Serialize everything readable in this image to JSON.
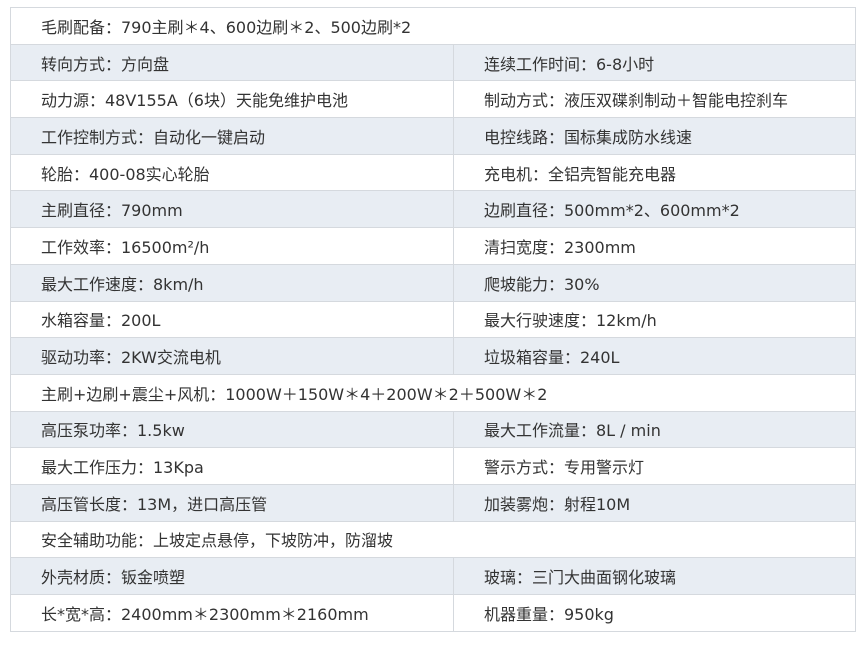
{
  "rows": [
    [
      "毛刷配备：790主刷＊4、600边刷＊2、500边刷*2"
    ],
    [
      "转向方式：方向盘",
      "连续工作时间：6-8小时"
    ],
    [
      "动力源：48V155A（6块）天能免维护电池",
      "制动方式：液压双碟刹制动＋智能电控刹车"
    ],
    [
      "工作控制方式：自动化一键启动",
      "电控线路：国标集成防水线速"
    ],
    [
      "轮胎：400-08实心轮胎",
      "充电机：全铝壳智能充电器"
    ],
    [
      "主刷直径：790mm",
      "边刷直径：500mm*2、600mm*2"
    ],
    [
      "工作效率：16500m²/h",
      "清扫宽度：2300mm"
    ],
    [
      "最大工作速度：8km/h",
      "爬坡能力：30%"
    ],
    [
      "水箱容量：200L",
      "最大行驶速度：12km/h"
    ],
    [
      "驱动功率：2KW交流电机",
      "垃圾箱容量：240L"
    ],
    [
      "主刷+边刷+震尘+风机：1000W＋150W＊4＋200W＊2＋500W＊2"
    ],
    [
      "高压泵功率：1.5kw",
      "最大工作流量：8L / min"
    ],
    [
      "最大工作压力：13Kpa",
      "警示方式：专用警示灯"
    ],
    [
      "高压管长度：13M，进口高压管",
      "加装雾炮：射程10M"
    ],
    [
      "安全辅助功能：上坡定点悬停，下坡防冲，防溜坡"
    ],
    [
      "外壳材质：钣金喷塑",
      "玻璃：三门大曲面钢化玻璃"
    ],
    [
      "长*宽*高：2400mm＊2300mm＊2160mm",
      "机器重量：950kg"
    ]
  ]
}
